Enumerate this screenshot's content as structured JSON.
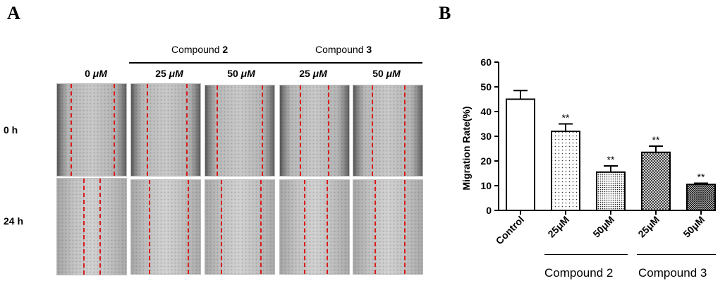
{
  "panel_a": {
    "letter": "A",
    "groups": [
      {
        "prefix": "Compound ",
        "num": "2"
      },
      {
        "prefix": "Compound ",
        "num": "3"
      }
    ],
    "concentrations": [
      {
        "value": "0 ",
        "unit": "μM"
      },
      {
        "value": "25 ",
        "unit": "μM"
      },
      {
        "value": "50 ",
        "unit": "μM"
      },
      {
        "value": "25 ",
        "unit": "μM"
      },
      {
        "value": "50 ",
        "unit": "μM"
      }
    ],
    "rows": [
      "0 h",
      "24 h"
    ],
    "scratch_color": "#d81a1a"
  },
  "panel_b": {
    "letter": "B",
    "group_labels": [
      "Compound 2",
      "Compound 3"
    ]
  },
  "chart_data": {
    "type": "bar",
    "title": "",
    "xlabel": "",
    "ylabel": "Migration Rate(%)",
    "ylim": [
      0,
      60
    ],
    "yticks": [
      0,
      10,
      20,
      30,
      40,
      50,
      60
    ],
    "categories": [
      "Control",
      "25μM",
      "50μM",
      "25μM",
      "50μM"
    ],
    "values": [
      45,
      32,
      15.5,
      23.5,
      10.5
    ],
    "errors": [
      3.5,
      3,
      2.5,
      2.5,
      0.5
    ],
    "significance": [
      "",
      "**",
      "**",
      "**",
      "**"
    ],
    "fills": [
      "white",
      "sparse-dots",
      "dense-dots",
      "crosshatch",
      "dense-crosshatch"
    ],
    "grid": false,
    "legend": "none"
  }
}
